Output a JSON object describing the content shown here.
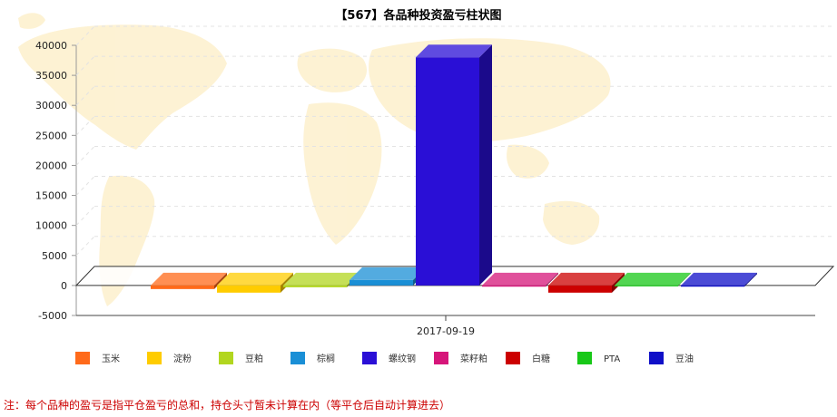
{
  "chart_data": {
    "type": "bar",
    "title": "【567】各品种投资盈亏柱状图",
    "categories": [
      "2017-09-19"
    ],
    "series": [
      {
        "name": "玉米",
        "values": [
          -600
        ],
        "color": "#ff6a1a"
      },
      {
        "name": "淀粉",
        "values": [
          -1200
        ],
        "color": "#ffcc00"
      },
      {
        "name": "豆粕",
        "values": [
          -300
        ],
        "color": "#b2d61f"
      },
      {
        "name": "棕榈",
        "values": [
          900
        ],
        "color": "#1a8fd6"
      },
      {
        "name": "螺纹钢",
        "values": [
          38000
        ],
        "color": "#2a0fd6"
      },
      {
        "name": "菜籽粕",
        "values": [
          -200
        ],
        "color": "#d6157a"
      },
      {
        "name": "白糖",
        "values": [
          -1200
        ],
        "color": "#cc0000"
      },
      {
        "name": "PTA",
        "values": [
          -100
        ],
        "color": "#18c818"
      },
      {
        "name": "豆油",
        "values": [
          -200
        ],
        "color": "#0f0fc8"
      }
    ],
    "ylim": [
      -5000,
      40000
    ],
    "yticks": [
      "40000",
      "35000",
      "30000",
      "25000",
      "20000",
      "15000",
      "10000",
      "5000",
      "0",
      "-5000"
    ],
    "grid": true,
    "legend_position": "bottom"
  },
  "note": "注：每个品种的盈亏是指平仓盈亏的总和，持仓头寸暂未计算在内（等平仓后自动计算进去）"
}
